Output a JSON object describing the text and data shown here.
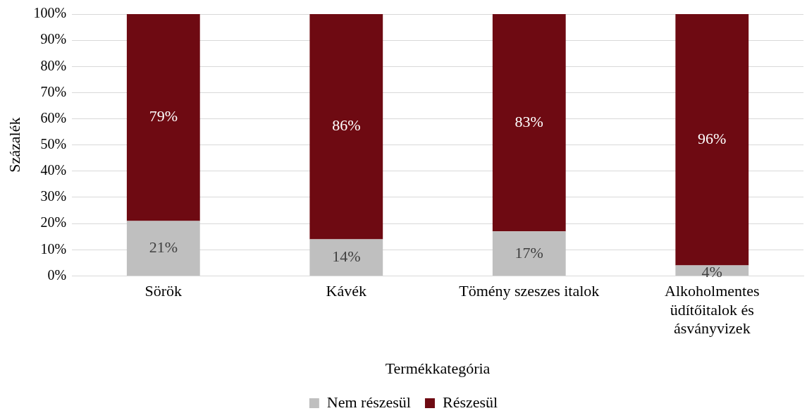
{
  "chart_data": {
    "type": "bar",
    "stacked": true,
    "categories": [
      "Sörök",
      "Kávék",
      "Tömény szeszes italok",
      "Alkoholmentes üdítőitalok és ásványvizek"
    ],
    "series": [
      {
        "name": "Nem részesül",
        "color": "#bfbfbf",
        "values": [
          21,
          14,
          17,
          4
        ],
        "value_labels": [
          "21%",
          "14%",
          "17%",
          "4%"
        ]
      },
      {
        "name": "Részesül",
        "color": "#6e0a12",
        "values": [
          79,
          86,
          83,
          96
        ],
        "value_labels": [
          "79%",
          "86%",
          "83%",
          "96%"
        ]
      }
    ],
    "xlabel": "Termékkategória",
    "ylabel": "Százalék",
    "ylim": [
      0,
      100
    ],
    "yticks": [
      {
        "value": 0,
        "label": "0%"
      },
      {
        "value": 10,
        "label": "10%"
      },
      {
        "value": 20,
        "label": "20%"
      },
      {
        "value": 30,
        "label": "30%"
      },
      {
        "value": 40,
        "label": "40%"
      },
      {
        "value": 50,
        "label": "50%"
      },
      {
        "value": 60,
        "label": "60%"
      },
      {
        "value": 70,
        "label": "70%"
      },
      {
        "value": 80,
        "label": "80%"
      },
      {
        "value": 90,
        "label": "90%"
      },
      {
        "value": 100,
        "label": "100%"
      }
    ],
    "grid": "y",
    "legend": "bottom"
  }
}
